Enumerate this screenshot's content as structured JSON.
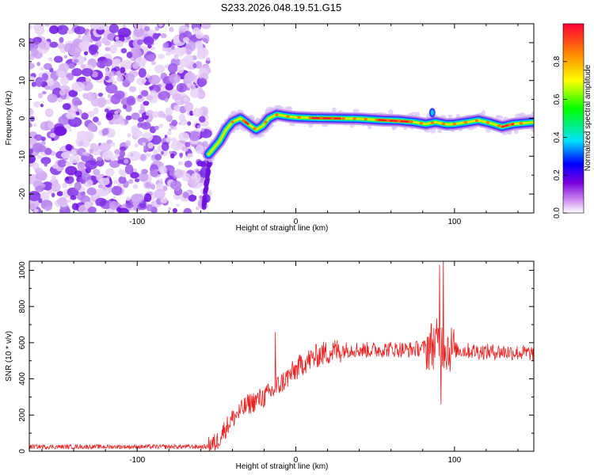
{
  "title": "S233.2026.048.19.51.G15",
  "chart_data": [
    {
      "type": "heatmap",
      "xlabel": "Height of straight line (km)",
      "ylabel": "Frequency (Hz)",
      "xlim": [
        -168,
        150
      ],
      "ylim": [
        -25,
        25
      ],
      "x_ticks": [
        -100,
        0,
        100
      ],
      "y_ticks": [
        -20,
        -10,
        0,
        10,
        20
      ],
      "noise_region_x": [
        -168,
        -55
      ],
      "ridge": [
        {
          "x": -55,
          "y": -9.5
        },
        {
          "x": -52,
          "y": -8
        },
        {
          "x": -48,
          "y": -6
        },
        {
          "x": -44,
          "y": -3
        },
        {
          "x": -40,
          "y": -1
        },
        {
          "x": -35,
          "y": 0
        },
        {
          "x": -30,
          "y": -1.5
        },
        {
          "x": -25,
          "y": -3
        },
        {
          "x": -21,
          "y": -2
        },
        {
          "x": -17,
          "y": 0
        },
        {
          "x": -12,
          "y": 1
        },
        {
          "x": -5,
          "y": 0.5
        },
        {
          "x": 0,
          "y": 0.3
        },
        {
          "x": 10,
          "y": 0.1
        },
        {
          "x": 25,
          "y": 0
        },
        {
          "x": 40,
          "y": -0.1
        },
        {
          "x": 55,
          "y": -0.5
        },
        {
          "x": 65,
          "y": -0.6
        },
        {
          "x": 75,
          "y": -1
        },
        {
          "x": 82,
          "y": -1.5
        },
        {
          "x": 88,
          "y": -1
        },
        {
          "x": 95,
          "y": -1.6
        },
        {
          "x": 100,
          "y": -1.5
        },
        {
          "x": 108,
          "y": -1
        },
        {
          "x": 115,
          "y": -0.5
        },
        {
          "x": 122,
          "y": -1.2
        },
        {
          "x": 130,
          "y": -2.2
        },
        {
          "x": 137,
          "y": -1.5
        },
        {
          "x": 145,
          "y": -1.2
        },
        {
          "x": 150,
          "y": -1
        }
      ],
      "peak_segments": [
        [
          -33,
          -30
        ],
        [
          10,
          28
        ],
        [
          52,
          73
        ],
        [
          130,
          137
        ]
      ],
      "colorbar": {
        "label": "Normalized spectral amplitude",
        "range": [
          0,
          1
        ],
        "ticks": [
          0.0,
          0.2,
          0.4,
          0.6,
          0.8
        ]
      }
    },
    {
      "type": "line",
      "xlabel": "Height of straight line (km)",
      "ylabel": "SNR (10 * v/v)",
      "xlim": [
        -168,
        150
      ],
      "ylim": [
        0,
        1050
      ],
      "x_ticks": [
        -100,
        0,
        100
      ],
      "y_ticks": [
        0,
        200,
        400,
        600,
        800,
        1000
      ],
      "color": "#ee2222",
      "x": [
        -168,
        -150,
        -130,
        -110,
        -90,
        -70,
        -55,
        -50,
        -45,
        -40,
        -35,
        -30,
        -25,
        -20,
        -15,
        -10,
        -5,
        0,
        5,
        10,
        15,
        20,
        25,
        30,
        35,
        40,
        50,
        60,
        70,
        80,
        85,
        88,
        90,
        92,
        94,
        96,
        100,
        110,
        120,
        130,
        140,
        150
      ],
      "values": [
        25,
        25,
        25,
        25,
        25,
        25,
        25,
        50,
        120,
        180,
        220,
        260,
        280,
        300,
        330,
        370,
        410,
        450,
        490,
        510,
        535,
        545,
        555,
        560,
        565,
        560,
        560,
        565,
        560,
        570,
        585,
        595,
        600,
        590,
        580,
        570,
        560,
        555,
        550,
        550,
        545,
        540
      ],
      "spikes": [
        {
          "x": -13,
          "value": 660
        },
        {
          "x": 90.5,
          "value": 1030
        },
        {
          "x": 93,
          "value": 1100
        },
        {
          "x": 91.5,
          "value": 260
        }
      ]
    }
  ]
}
